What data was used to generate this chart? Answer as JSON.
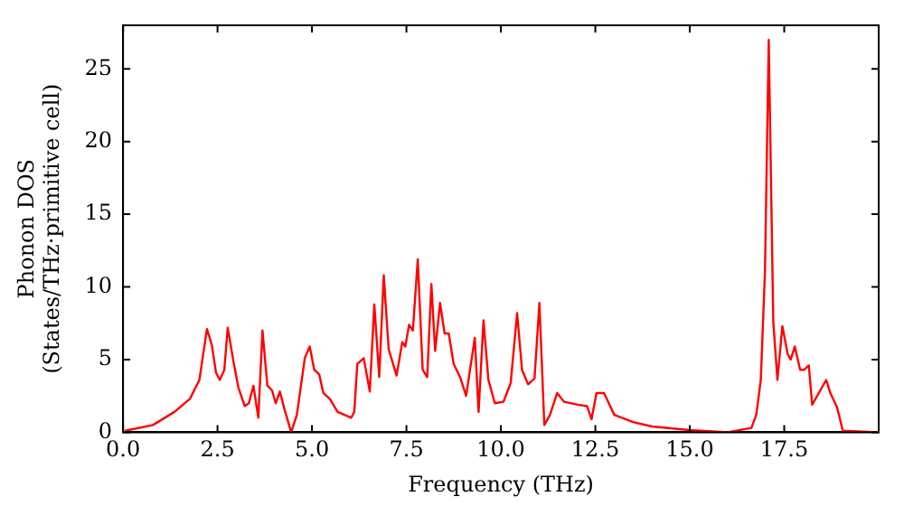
{
  "chart_data": {
    "type": "line",
    "xlabel": "Frequency (THz)",
    "ylabel": "Phonon DOS\n(States/THz·primitive cell)",
    "x": [
      0.05,
      0.79,
      1.36,
      1.77,
      2.02,
      2.22,
      2.35,
      2.46,
      2.56,
      2.68,
      2.77,
      2.92,
      3.05,
      3.22,
      3.33,
      3.45,
      3.58,
      3.69,
      3.82,
      3.94,
      4.04,
      4.15,
      4.27,
      4.45,
      4.6,
      4.81,
      4.94,
      5.06,
      5.19,
      5.3,
      5.47,
      5.68,
      6.04,
      6.12,
      6.2,
      6.37,
      6.53,
      6.65,
      6.78,
      6.9,
      7.03,
      7.24,
      7.39,
      7.47,
      7.57,
      7.67,
      7.8,
      7.93,
      8.05,
      8.16,
      8.26,
      8.39,
      8.51,
      8.62,
      8.75,
      8.92,
      9.08,
      9.31,
      9.41,
      9.54,
      9.67,
      9.84,
      10.07,
      10.26,
      10.43,
      10.56,
      10.72,
      10.89,
      11.02,
      11.15,
      11.3,
      11.49,
      11.67,
      12.04,
      12.28,
      12.4,
      12.53,
      12.73,
      13.0,
      13.5,
      14.0,
      15.0,
      16.0,
      16.63,
      16.76,
      16.88,
      16.99,
      17.09,
      17.21,
      17.32,
      17.45,
      17.59,
      17.67,
      17.78,
      17.92,
      18.03,
      18.15,
      18.24,
      18.61,
      18.72,
      18.9,
      19.05,
      20.0
    ],
    "series": [
      {
        "color": "#ff0000",
        "values": [
          0.1,
          0.5,
          1.4,
          2.3,
          3.6,
          7.1,
          6.0,
          4.1,
          3.6,
          4.3,
          7.2,
          4.9,
          3.1,
          1.8,
          2.0,
          3.2,
          1.0,
          7.0,
          3.2,
          2.9,
          2.0,
          2.8,
          1.6,
          0,
          1.2,
          5.1,
          5.9,
          4.3,
          4.0,
          2.7,
          2.3,
          1.4,
          1.0,
          1.4,
          4.7,
          5.1,
          2.8,
          8.8,
          3.8,
          10.8,
          5.7,
          3.9,
          6.2,
          5.9,
          7.4,
          7.0,
          11.9,
          4.3,
          3.8,
          10.2,
          5.6,
          8.9,
          6.8,
          6.8,
          4.7,
          3.8,
          2.5,
          6.5,
          1.4,
          7.7,
          3.6,
          2.0,
          2.1,
          3.4,
          8.2,
          4.3,
          3.3,
          3.7,
          8.9,
          0.5,
          1.2,
          2.7,
          2.1,
          1.9,
          1.8,
          0.9,
          2.7,
          2.7,
          1.2,
          0.7,
          0.4,
          0.15,
          0,
          0.3,
          1.2,
          3.6,
          11.1,
          27.0,
          7.6,
          3.6,
          7.3,
          5.4,
          5.0,
          5.9,
          4.3,
          4.3,
          4.6,
          1.9,
          3.6,
          2.7,
          1.7,
          0.1,
          0
        ]
      }
    ],
    "xlim": [
      0,
      20
    ],
    "ylim": [
      0,
      28
    ],
    "xticks": [
      {
        "value": 0,
        "label": "0.0"
      },
      {
        "value": 2.5,
        "label": "2.5"
      },
      {
        "value": 5,
        "label": "5.0"
      },
      {
        "value": 7.5,
        "label": "7.5"
      },
      {
        "value": 10,
        "label": "10.0"
      },
      {
        "value": 12.5,
        "label": "12.5"
      },
      {
        "value": 15,
        "label": "15.0"
      },
      {
        "value": 17.5,
        "label": "17.5"
      }
    ],
    "yticks": [
      0,
      5,
      10,
      15,
      20,
      25
    ],
    "grid": false,
    "legend": false,
    "marker": "none",
    "line_style": "solid"
  }
}
